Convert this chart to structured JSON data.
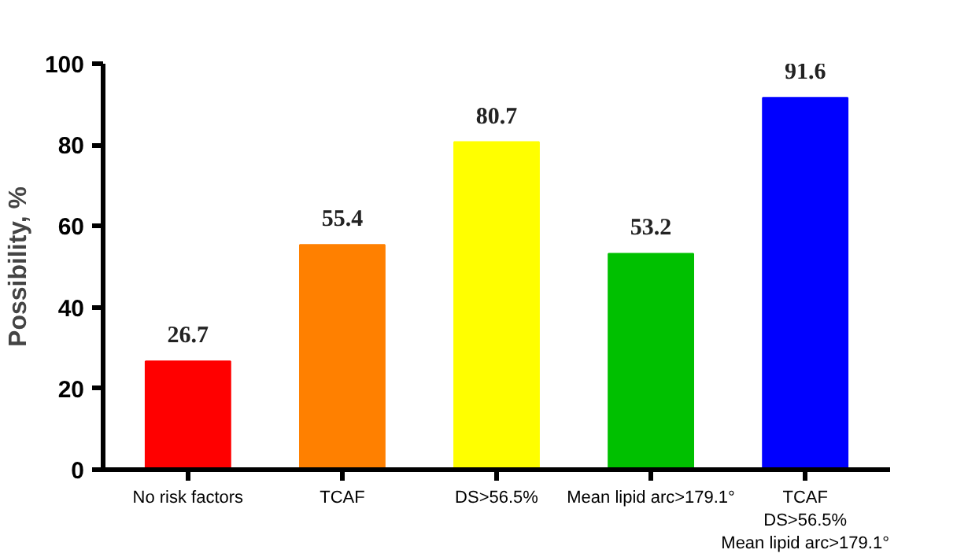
{
  "chart_data": {
    "type": "bar",
    "ylabel": "Possibility, %",
    "categories": [
      "No risk factors",
      "TCAF",
      "DS>56.5%",
      "Mean lipid arc>179.1°",
      "TCAF\nDS>56.5%\nMean lipid arc>179.1°"
    ],
    "values": [
      26.7,
      55.4,
      80.7,
      53.2,
      91.6
    ],
    "colors": [
      "#ff0000",
      "#ff8000",
      "#ffff00",
      "#00c000",
      "#0000ff"
    ],
    "ylim": [
      0,
      100
    ],
    "yticks": [
      0,
      20,
      40,
      60,
      80,
      100
    ],
    "grid": false,
    "data_labels": true
  }
}
